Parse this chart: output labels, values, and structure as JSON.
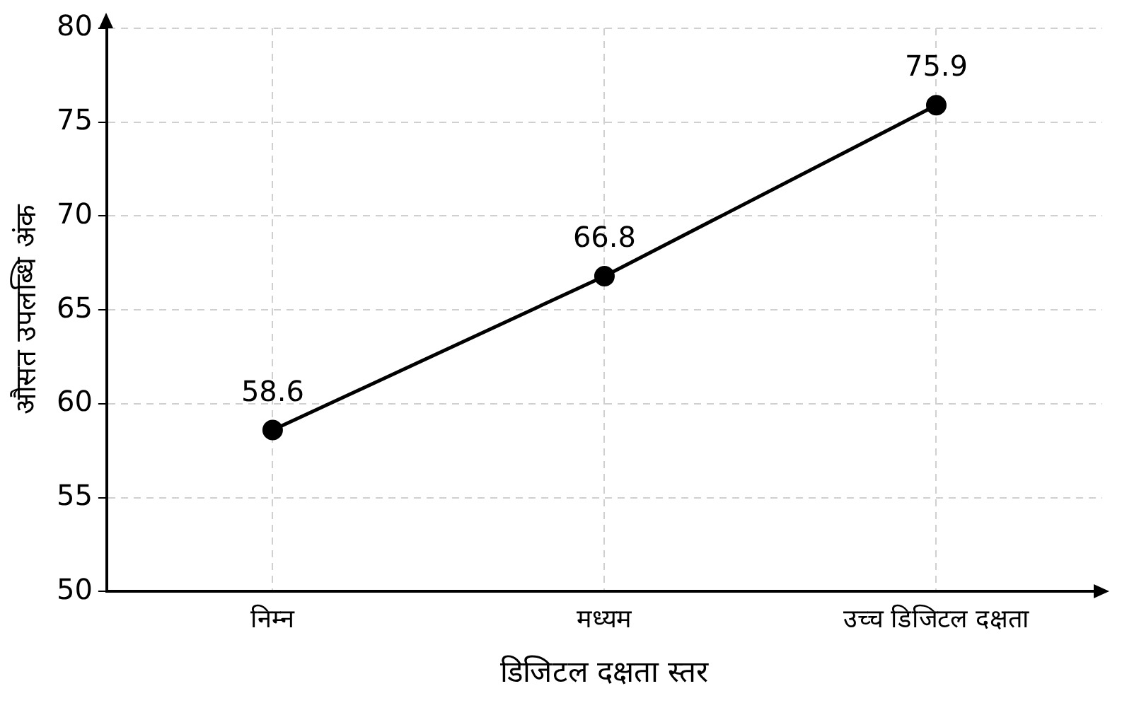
{
  "chart_data": {
    "type": "line",
    "xlabel": "डिजिटल दक्षता स्तर",
    "ylabel": "औसत उपलब्धि अंक",
    "categories": [
      "निम्न",
      "मध्यम",
      "उच्च डिजिटल दक्षता"
    ],
    "series": [
      {
        "color": "#000000",
        "values": [
          58.6,
          66.8,
          75.9
        ]
      }
    ],
    "ylim": [
      50,
      80
    ],
    "yticks": [
      50,
      55,
      60,
      65,
      70,
      75,
      80
    ],
    "grid": true,
    "marker": "circle",
    "line_style": "solid",
    "data_labels": true
  }
}
